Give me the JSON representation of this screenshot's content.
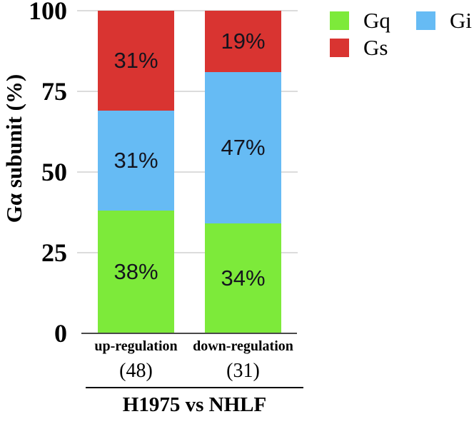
{
  "chart_data": {
    "type": "bar",
    "stacked": true,
    "title": "H1975 vs NHLF",
    "ylabel": "Gα subunit (%)",
    "ylim": [
      0,
      100
    ],
    "yticks": [
      0,
      25,
      50,
      75,
      100
    ],
    "grid": "horizontal",
    "legend_position": "top-right",
    "categories": [
      {
        "label": "up-regulation",
        "count": "(48)"
      },
      {
        "label": "down-regulation",
        "count": "(31)"
      }
    ],
    "series": [
      {
        "name": "Gq",
        "color": "#7dea3a",
        "values": [
          38,
          34
        ],
        "data_labels": [
          "38%",
          "34%"
        ]
      },
      {
        "name": "Gi",
        "color": "#66bbf4",
        "values": [
          31,
          47
        ],
        "data_labels": [
          "31%",
          "47%"
        ]
      },
      {
        "name": "Gs",
        "color": "#d93431",
        "values": [
          31,
          19
        ],
        "data_labels": [
          "31%",
          "19%"
        ]
      }
    ]
  },
  "style_colors": {
    "gridline": "#dcdcdc",
    "baseline": "#4a4a4a",
    "separator": "#000000",
    "value_label": "#14141e"
  }
}
